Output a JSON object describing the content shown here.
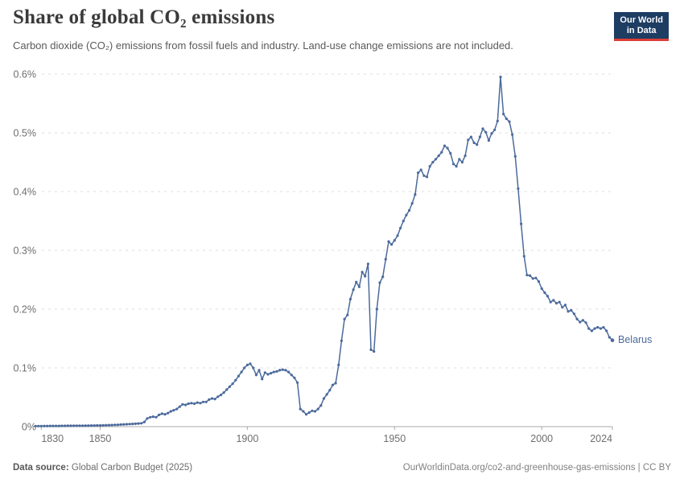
{
  "header": {
    "title": "Share of global CO₂ emissions",
    "subtitle": "Carbon dioxide (CO₂) emissions from fossil fuels and industry. Land-use change emissions are not included."
  },
  "logo": {
    "line1": "Our World",
    "line2": "in Data",
    "bg_color": "#1d3d63",
    "accent_color": "#dc3e36"
  },
  "footer": {
    "data_source_label": "Data source:",
    "data_source_value": "Global Carbon Budget (2025)",
    "attribution": "OurWorldinData.org/co2-and-greenhouse-gas-emissions | CC BY"
  },
  "chart_data": {
    "type": "line",
    "title": "Share of global CO₂ emissions",
    "subtitle": "Carbon dioxide (CO₂) emissions from fossil fuels and industry. Land-use change emissions are not included.",
    "xlabel": "",
    "ylabel": "",
    "grid": "dashed-horizontal",
    "legend_position": "end-of-line-label",
    "x_range": [
      1828,
      2024
    ],
    "y_range": [
      0,
      0.6
    ],
    "y_unit": "%",
    "x_ticks": [
      {
        "value": 1830,
        "label": "1830",
        "anchor": "start"
      },
      {
        "value": 1850,
        "label": "1850",
        "anchor": "middle"
      },
      {
        "value": 1900,
        "label": "1900",
        "anchor": "middle"
      },
      {
        "value": 1950,
        "label": "1950",
        "anchor": "middle"
      },
      {
        "value": 2000,
        "label": "2000",
        "anchor": "middle"
      },
      {
        "value": 2024,
        "label": "2024",
        "anchor": "end"
      }
    ],
    "y_ticks": [
      {
        "value": 0,
        "label": "0%"
      },
      {
        "value": 0.1,
        "label": "0.1%"
      },
      {
        "value": 0.2,
        "label": "0.2%"
      },
      {
        "value": 0.3,
        "label": "0.3%"
      },
      {
        "value": 0.4,
        "label": "0.4%"
      },
      {
        "value": 0.5,
        "label": "0.5%"
      },
      {
        "value": 0.6,
        "label": "0.6%"
      }
    ],
    "series": [
      {
        "name": "Belarus",
        "color": "#4c6a9c",
        "points": [
          [
            1828,
            0.001
          ],
          [
            1829,
            0.001
          ],
          [
            1830,
            0.001
          ],
          [
            1831,
            0.0011
          ],
          [
            1832,
            0.0011
          ],
          [
            1833,
            0.0012
          ],
          [
            1834,
            0.0012
          ],
          [
            1835,
            0.0013
          ],
          [
            1836,
            0.0013
          ],
          [
            1837,
            0.0014
          ],
          [
            1838,
            0.0014
          ],
          [
            1839,
            0.0015
          ],
          [
            1840,
            0.0015
          ],
          [
            1841,
            0.0016
          ],
          [
            1842,
            0.0016
          ],
          [
            1843,
            0.0017
          ],
          [
            1844,
            0.0017
          ],
          [
            1845,
            0.0018
          ],
          [
            1846,
            0.0018
          ],
          [
            1847,
            0.0019
          ],
          [
            1848,
            0.0019
          ],
          [
            1849,
            0.002
          ],
          [
            1850,
            0.002
          ],
          [
            1851,
            0.0022
          ],
          [
            1852,
            0.0024
          ],
          [
            1853,
            0.0026
          ],
          [
            1854,
            0.0028
          ],
          [
            1855,
            0.003
          ],
          [
            1856,
            0.0032
          ],
          [
            1857,
            0.0035
          ],
          [
            1858,
            0.0038
          ],
          [
            1859,
            0.0041
          ],
          [
            1860,
            0.0044
          ],
          [
            1861,
            0.0047
          ],
          [
            1862,
            0.005
          ],
          [
            1863,
            0.0054
          ],
          [
            1864,
            0.0058
          ],
          [
            1865,
            0.008
          ],
          [
            1866,
            0.014
          ],
          [
            1867,
            0.016
          ],
          [
            1868,
            0.017
          ],
          [
            1869,
            0.016
          ],
          [
            1870,
            0.02
          ],
          [
            1871,
            0.022
          ],
          [
            1872,
            0.021
          ],
          [
            1873,
            0.023
          ],
          [
            1874,
            0.026
          ],
          [
            1875,
            0.028
          ],
          [
            1876,
            0.03
          ],
          [
            1877,
            0.034
          ],
          [
            1878,
            0.038
          ],
          [
            1879,
            0.037
          ],
          [
            1880,
            0.039
          ],
          [
            1881,
            0.04
          ],
          [
            1882,
            0.039
          ],
          [
            1883,
            0.041
          ],
          [
            1884,
            0.04
          ],
          [
            1885,
            0.042
          ],
          [
            1886,
            0.042
          ],
          [
            1887,
            0.046
          ],
          [
            1888,
            0.048
          ],
          [
            1889,
            0.047
          ],
          [
            1890,
            0.051
          ],
          [
            1891,
            0.054
          ],
          [
            1892,
            0.058
          ],
          [
            1893,
            0.063
          ],
          [
            1894,
            0.068
          ],
          [
            1895,
            0.073
          ],
          [
            1896,
            0.079
          ],
          [
            1897,
            0.086
          ],
          [
            1898,
            0.093
          ],
          [
            1899,
            0.1
          ],
          [
            1900,
            0.105
          ],
          [
            1901,
            0.107
          ],
          [
            1902,
            0.1
          ],
          [
            1903,
            0.088
          ],
          [
            1904,
            0.096
          ],
          [
            1905,
            0.081
          ],
          [
            1906,
            0.092
          ],
          [
            1907,
            0.089
          ],
          [
            1908,
            0.091
          ],
          [
            1909,
            0.093
          ],
          [
            1910,
            0.094
          ],
          [
            1911,
            0.096
          ],
          [
            1912,
            0.097
          ],
          [
            1913,
            0.096
          ],
          [
            1914,
            0.093
          ],
          [
            1915,
            0.088
          ],
          [
            1916,
            0.083
          ],
          [
            1917,
            0.075
          ],
          [
            1918,
            0.03
          ],
          [
            1919,
            0.026
          ],
          [
            1920,
            0.021
          ],
          [
            1921,
            0.024
          ],
          [
            1922,
            0.027
          ],
          [
            1923,
            0.026
          ],
          [
            1924,
            0.03
          ],
          [
            1925,
            0.036
          ],
          [
            1926,
            0.048
          ],
          [
            1927,
            0.055
          ],
          [
            1928,
            0.062
          ],
          [
            1929,
            0.071
          ],
          [
            1930,
            0.074
          ],
          [
            1931,
            0.105
          ],
          [
            1932,
            0.146
          ],
          [
            1933,
            0.183
          ],
          [
            1934,
            0.19
          ],
          [
            1935,
            0.217
          ],
          [
            1936,
            0.233
          ],
          [
            1937,
            0.246
          ],
          [
            1938,
            0.238
          ],
          [
            1939,
            0.263
          ],
          [
            1940,
            0.256
          ],
          [
            1941,
            0.277
          ],
          [
            1942,
            0.131
          ],
          [
            1943,
            0.128
          ],
          [
            1944,
            0.2
          ],
          [
            1945,
            0.245
          ],
          [
            1946,
            0.255
          ],
          [
            1947,
            0.285
          ],
          [
            1948,
            0.315
          ],
          [
            1949,
            0.31
          ],
          [
            1950,
            0.317
          ],
          [
            1951,
            0.325
          ],
          [
            1952,
            0.338
          ],
          [
            1953,
            0.35
          ],
          [
            1954,
            0.36
          ],
          [
            1955,
            0.368
          ],
          [
            1956,
            0.38
          ],
          [
            1957,
            0.395
          ],
          [
            1958,
            0.432
          ],
          [
            1959,
            0.437
          ],
          [
            1960,
            0.427
          ],
          [
            1961,
            0.425
          ],
          [
            1962,
            0.443
          ],
          [
            1963,
            0.45
          ],
          [
            1964,
            0.455
          ],
          [
            1965,
            0.461
          ],
          [
            1966,
            0.467
          ],
          [
            1967,
            0.478
          ],
          [
            1968,
            0.474
          ],
          [
            1969,
            0.465
          ],
          [
            1970,
            0.447
          ],
          [
            1971,
            0.443
          ],
          [
            1972,
            0.455
          ],
          [
            1973,
            0.45
          ],
          [
            1974,
            0.461
          ],
          [
            1975,
            0.488
          ],
          [
            1976,
            0.493
          ],
          [
            1977,
            0.483
          ],
          [
            1978,
            0.48
          ],
          [
            1979,
            0.493
          ],
          [
            1980,
            0.507
          ],
          [
            1981,
            0.501
          ],
          [
            1982,
            0.487
          ],
          [
            1983,
            0.499
          ],
          [
            1984,
            0.505
          ],
          [
            1985,
            0.52
          ],
          [
            1986,
            0.595
          ],
          [
            1987,
            0.532
          ],
          [
            1988,
            0.524
          ],
          [
            1989,
            0.519
          ],
          [
            1990,
            0.497
          ],
          [
            1991,
            0.46
          ],
          [
            1992,
            0.405
          ],
          [
            1993,
            0.345
          ],
          [
            1994,
            0.29
          ],
          [
            1995,
            0.258
          ],
          [
            1996,
            0.257
          ],
          [
            1997,
            0.252
          ],
          [
            1998,
            0.253
          ],
          [
            1999,
            0.247
          ],
          [
            2000,
            0.235
          ],
          [
            2001,
            0.228
          ],
          [
            2002,
            0.222
          ],
          [
            2003,
            0.212
          ],
          [
            2004,
            0.215
          ],
          [
            2005,
            0.21
          ],
          [
            2006,
            0.212
          ],
          [
            2007,
            0.203
          ],
          [
            2008,
            0.207
          ],
          [
            2009,
            0.196
          ],
          [
            2010,
            0.198
          ],
          [
            2011,
            0.192
          ],
          [
            2012,
            0.183
          ],
          [
            2013,
            0.178
          ],
          [
            2014,
            0.181
          ],
          [
            2015,
            0.177
          ],
          [
            2016,
            0.167
          ],
          [
            2017,
            0.163
          ],
          [
            2018,
            0.167
          ],
          [
            2019,
            0.169
          ],
          [
            2020,
            0.167
          ],
          [
            2021,
            0.169
          ],
          [
            2022,
            0.163
          ],
          [
            2023,
            0.152
          ],
          [
            2024,
            0.147
          ]
        ]
      }
    ]
  }
}
